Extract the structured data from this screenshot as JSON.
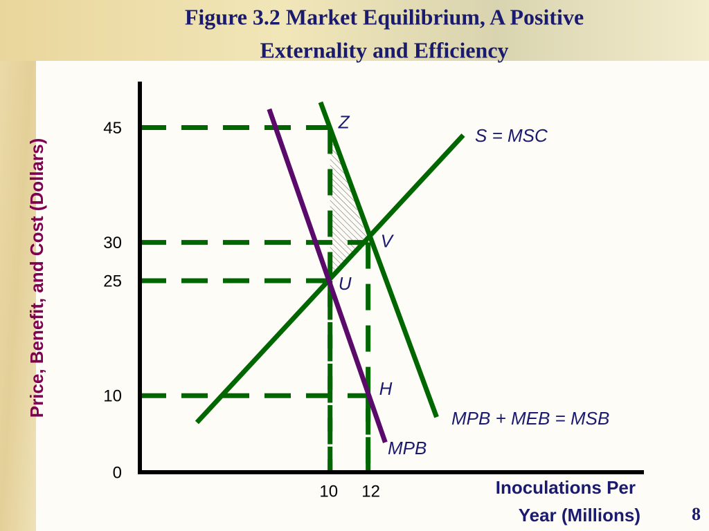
{
  "chart_data": {
    "type": "line",
    "title": [
      "Figure 3.2 Market Equilibrium, A Positive",
      "Externality and Efficiency"
    ],
    "ylabel": "Price, Benefit, and Cost (Dollars)",
    "xlabel": [
      "Inoculations Per",
      "Year (Millions)"
    ],
    "page_number": "8",
    "xlim": [
      0,
      26.5
    ],
    "ylim": [
      0,
      51
    ],
    "xticks": [
      10,
      12
    ],
    "yticks": [
      0,
      10,
      25,
      30,
      45
    ],
    "series": [
      {
        "name": "S = MSC",
        "color": "#006600",
        "x": [
          3,
          17
        ],
        "values": [
          6.5,
          44
        ]
      },
      {
        "name": "MPB",
        "color": "#5a0a6a",
        "x": [
          6.8,
          12.9
        ],
        "values": [
          47.4,
          3.9
        ]
      },
      {
        "name": "MPB + MEB = MSB",
        "color": "#006600",
        "x": [
          9.5,
          15.6
        ],
        "values": [
          48.3,
          7.2
        ]
      }
    ],
    "points": [
      {
        "label": "Z",
        "x": 10,
        "y": 45
      },
      {
        "label": "V",
        "x": 12,
        "y": 30
      },
      {
        "label": "U",
        "x": 10,
        "y": 25
      },
      {
        "label": "H",
        "x": 12,
        "y": 10
      }
    ]
  }
}
